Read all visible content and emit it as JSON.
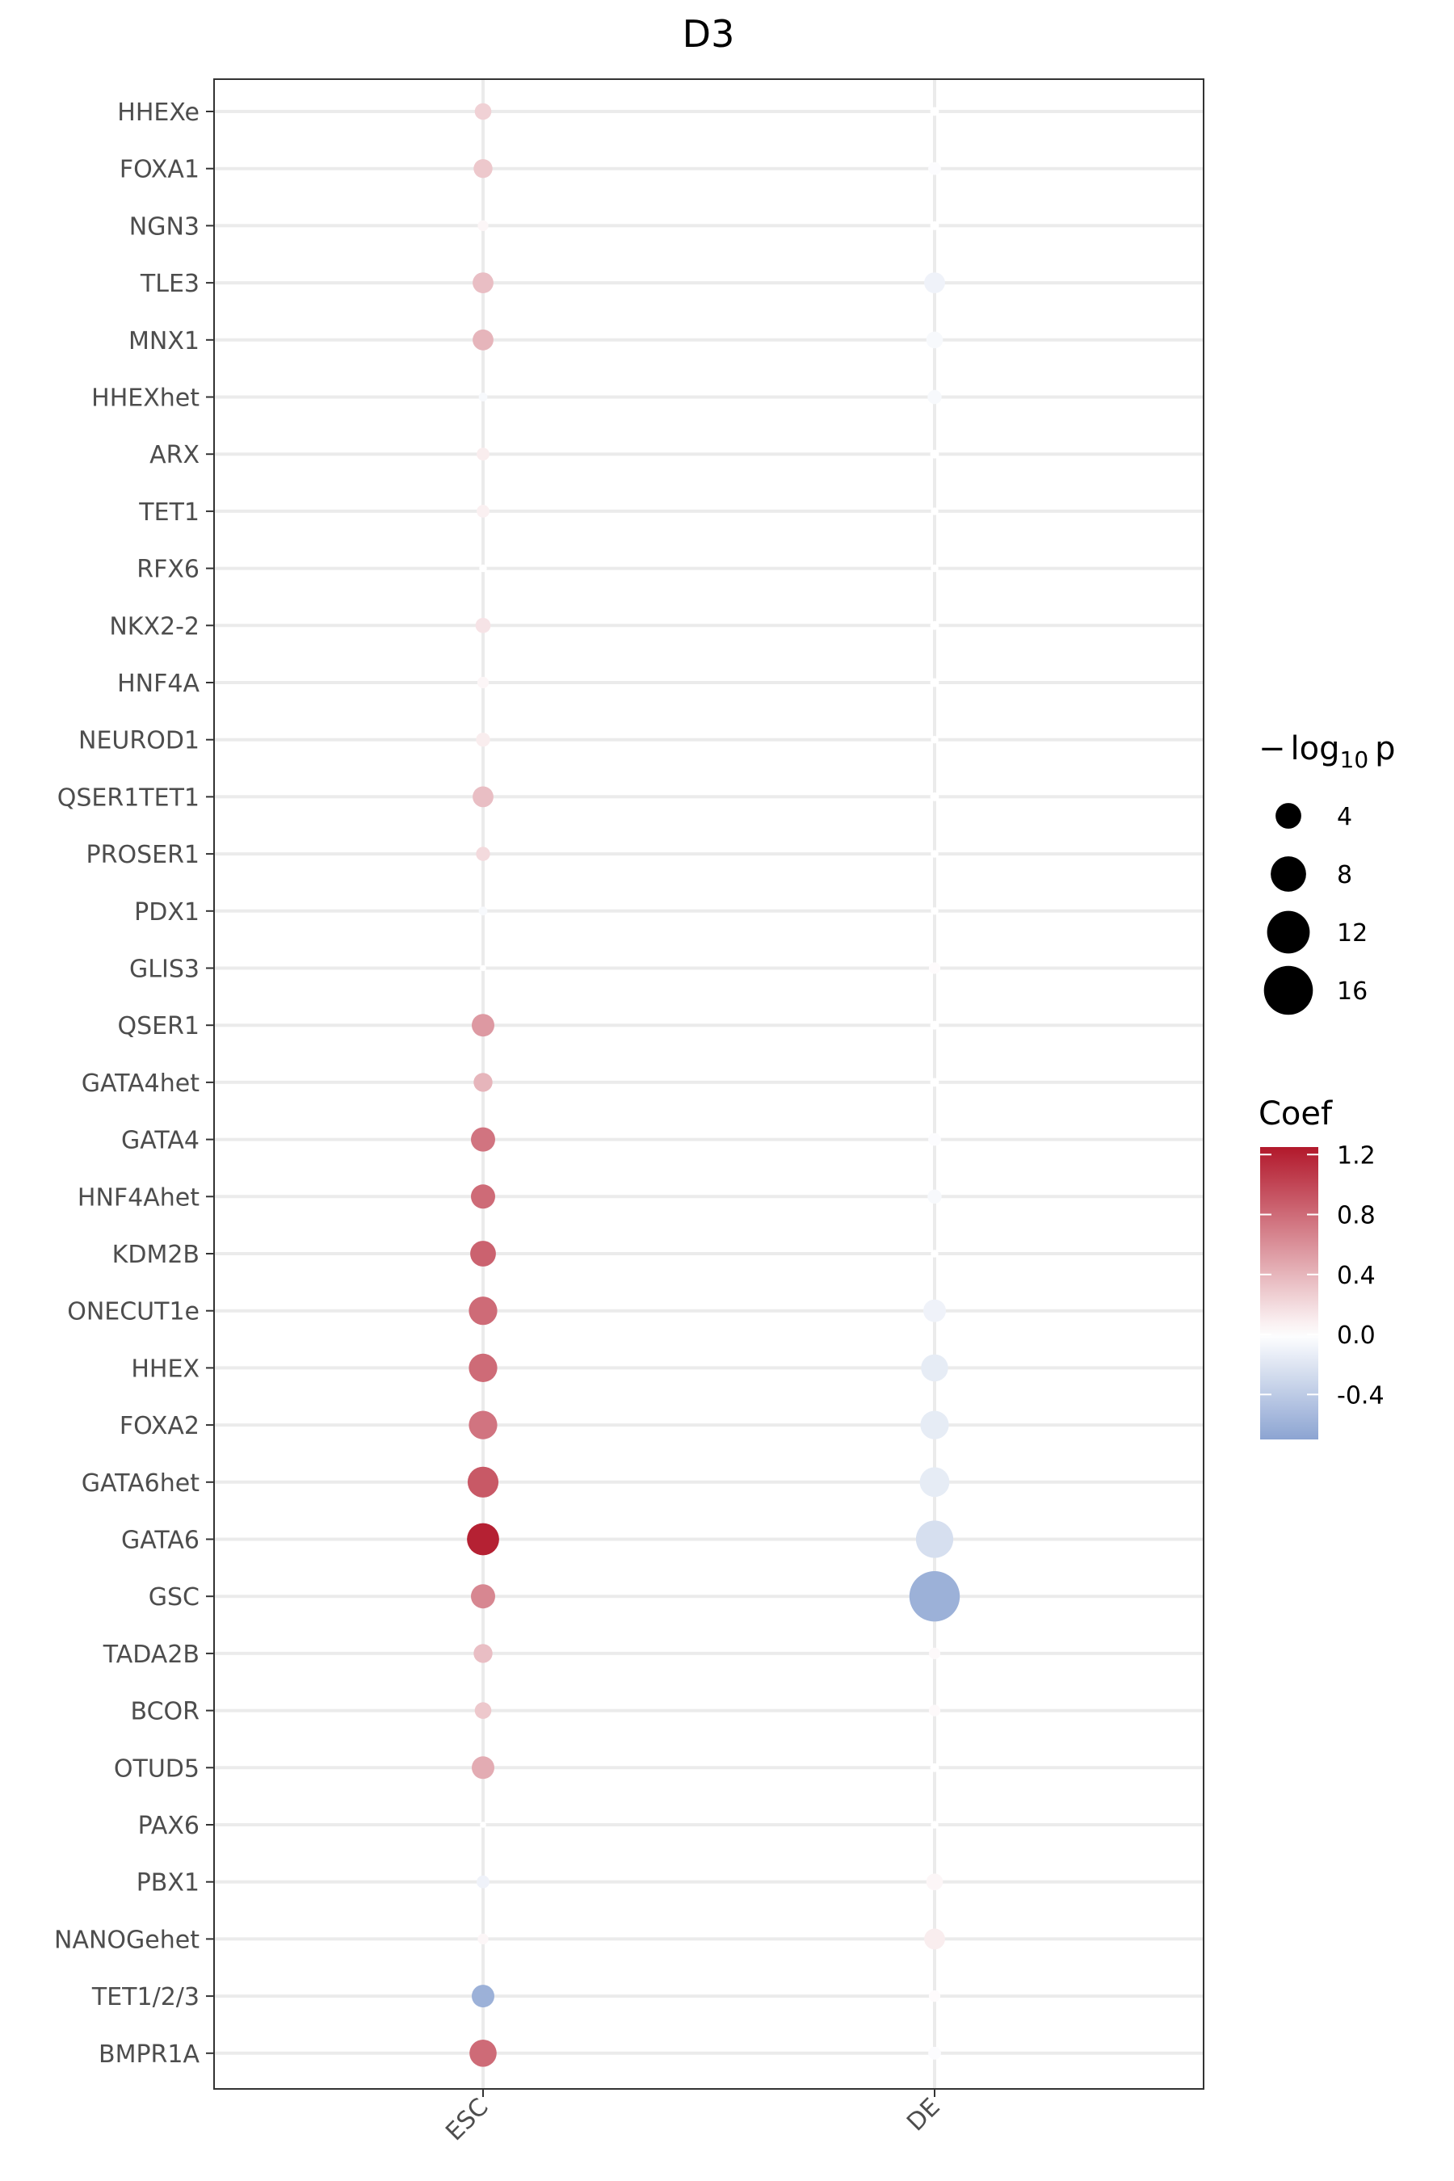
{
  "chart_data": {
    "type": "scatter",
    "title": "D3",
    "xlabel": "",
    "ylabel": "",
    "x_categories": [
      "ESC",
      "DE"
    ],
    "y_categories": [
      "HHEXe",
      "FOXA1",
      "NGN3",
      "TLE3",
      "MNX1",
      "HHEXhet",
      "ARX",
      "TET1",
      "RFX6",
      "NKX2-2",
      "HNF4A",
      "NEUROD1",
      "QSER1TET1",
      "PROSER1",
      "PDX1",
      "GLIS3",
      "QSER1",
      "GATA4het",
      "GATA4",
      "HNF4Ahet",
      "KDM2B",
      "ONECUT1e",
      "HHEX",
      "FOXA2",
      "GATA6het",
      "GATA6",
      "GSC",
      "TADA2B",
      "BCOR",
      "OTUD5",
      "PAX6",
      "PBX1",
      "NANOGehet",
      "TET1/2/3",
      "BMPR1A"
    ],
    "series": [
      {
        "x": "ESC",
        "coef": [
          0.25,
          0.3,
          0.05,
          0.35,
          0.4,
          -0.05,
          0.1,
          0.08,
          0.0,
          0.15,
          0.05,
          0.1,
          0.35,
          0.2,
          -0.05,
          0.0,
          0.55,
          0.4,
          0.75,
          0.8,
          0.85,
          0.8,
          0.8,
          0.75,
          0.9,
          1.2,
          0.65,
          0.35,
          0.3,
          0.45,
          0.0,
          -0.1,
          0.05,
          -0.6,
          0.8
        ],
        "neg_log10_p": [
          1.5,
          2.0,
          0.5,
          2.5,
          2.5,
          0.3,
          0.8,
          0.8,
          0.2,
          1.2,
          0.6,
          1.0,
          2.5,
          1.0,
          0.3,
          0.1,
          3.0,
          2.0,
          3.5,
          3.5,
          4.0,
          5.0,
          5.0,
          5.0,
          6.0,
          6.5,
          3.5,
          2.0,
          1.5,
          3.0,
          0.1,
          0.8,
          0.5,
          3.0,
          4.5
        ]
      },
      {
        "x": "DE",
        "coef": [
          0.0,
          -0.02,
          0.0,
          -0.1,
          -0.05,
          -0.05,
          0.0,
          0.0,
          0.0,
          0.0,
          0.0,
          0.0,
          0.0,
          0.0,
          0.0,
          0.02,
          0.0,
          0.0,
          -0.02,
          -0.05,
          0.0,
          -0.1,
          -0.15,
          -0.15,
          -0.15,
          -0.25,
          -0.6,
          0.03,
          0.03,
          0.0,
          0.0,
          0.05,
          0.1,
          0.02,
          -0.02
        ],
        "neg_log10_p": [
          0.3,
          0.8,
          0.3,
          2.5,
          1.5,
          1.0,
          0.3,
          0.2,
          0.2,
          0.3,
          0.3,
          0.2,
          0.3,
          0.2,
          0.2,
          0.6,
          0.3,
          0.3,
          0.8,
          1.0,
          0.2,
          3.0,
          4.5,
          5.0,
          5.5,
          9.0,
          17.0,
          0.6,
          0.6,
          0.3,
          0.2,
          1.5,
          2.5,
          0.6,
          0.8
        ]
      }
    ],
    "size_legend": {
      "title": "−log10 p",
      "values": [
        4,
        8,
        12,
        16
      ],
      "labels": [
        "4",
        "8",
        "12",
        "16"
      ]
    },
    "color_legend": {
      "title": "Coef",
      "range": [
        -0.7,
        1.25
      ],
      "ticks": [
        1.2,
        0.8,
        0.4,
        0.0,
        -0.4
      ],
      "tick_labels": [
        "1.2",
        "0.8",
        "0.4",
        "0.0",
        "-0.4"
      ],
      "colors": {
        "low": "#8ca4d2",
        "mid": "#ffffff",
        "high": "#b2182b"
      }
    },
    "grid": true,
    "legend_position": "right"
  },
  "colors": {
    "grid": "#ebebeb",
    "panel_border": "#333333",
    "tick_text": "#4d4d4d"
  }
}
